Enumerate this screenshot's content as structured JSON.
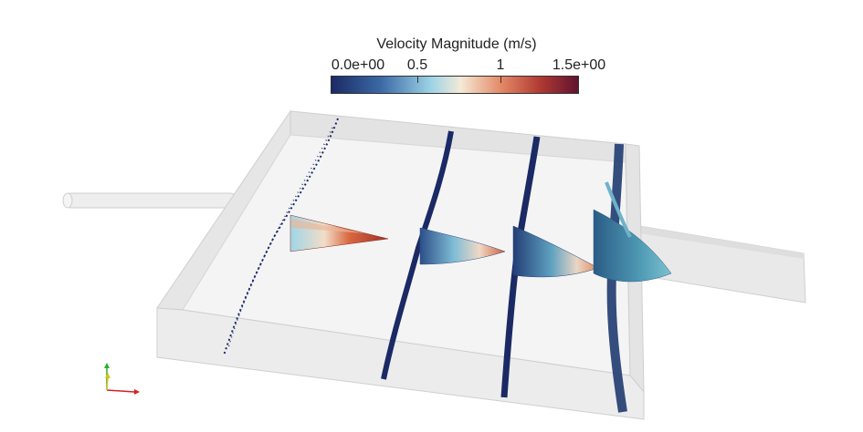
{
  "legend": {
    "title": "Velocity Magnitude (m/s)",
    "tick_labels": [
      "0.0e+00",
      "0.5",
      "1",
      "1.5e+00"
    ],
    "range": [
      0,
      1.5
    ],
    "colormap": [
      "#1b2a64",
      "#3b6aa6",
      "#9dd3e6",
      "#f4ead6",
      "#e48a68",
      "#b03a32",
      "#5e1030"
    ]
  },
  "colors": {
    "channel_outline": "#d2d2d2",
    "channel_fill": "#f3f3f3",
    "low_velocity": "#1b2a64",
    "mid_velocity": "#4a8fb0",
    "high_velocity": "#c9522e"
  },
  "axes_icon": {
    "x_color": "#d62020",
    "y_color": "#2ab02a",
    "z_color": "#d6c020"
  }
}
